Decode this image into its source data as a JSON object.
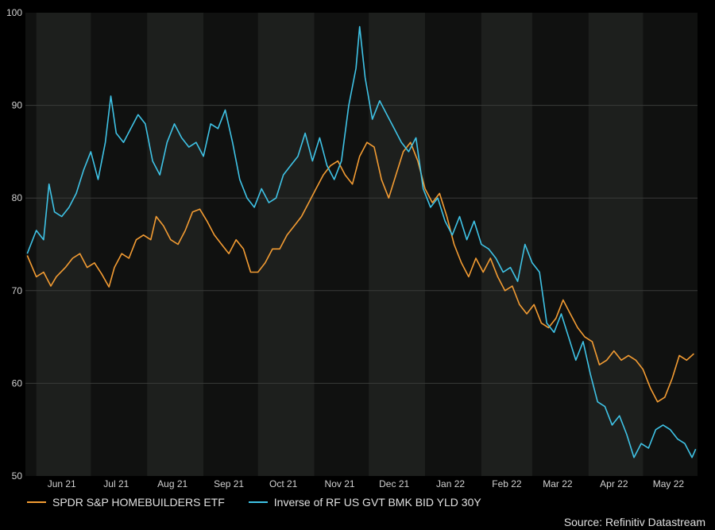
{
  "chart_data": {
    "type": "line",
    "title": "",
    "xlabel": "",
    "ylabel": "",
    "ylim": [
      50,
      100
    ],
    "yticks": [
      50,
      60,
      70,
      80,
      90,
      100
    ],
    "xlim": [
      "2021-05-26",
      "2022-05-31"
    ],
    "xtick_labels": [
      {
        "date": "2021-06-15",
        "label": "Jun 21"
      },
      {
        "date": "2021-07-15",
        "label": "Jul 21"
      },
      {
        "date": "2021-08-15",
        "label": "Aug 21"
      },
      {
        "date": "2021-09-15",
        "label": "Sep 21"
      },
      {
        "date": "2021-10-15",
        "label": "Oct 21"
      },
      {
        "date": "2021-11-15",
        "label": "Nov 21"
      },
      {
        "date": "2021-12-15",
        "label": "Dec 21"
      },
      {
        "date": "2022-01-15",
        "label": "Jan 22"
      },
      {
        "date": "2022-02-15",
        "label": "Feb 22"
      },
      {
        "date": "2022-03-15",
        "label": "Mar 22"
      },
      {
        "date": "2022-04-15",
        "label": "Apr 22"
      },
      {
        "date": "2022-05-15",
        "label": "May 22"
      }
    ],
    "month_bands": [
      "2021-06-01",
      "2021-07-01",
      "2021-08-01",
      "2021-09-01",
      "2021-10-01",
      "2021-11-01",
      "2021-12-01",
      "2022-01-01",
      "2022-02-01",
      "2022-03-01",
      "2022-04-01",
      "2022-05-01"
    ],
    "grid": "horizontal",
    "legend_position": "bottom-left",
    "series": [
      {
        "name": "SPDR S&P HOMEBUILDERS ETF",
        "color": "#f39c33",
        "points": [
          [
            "2021-05-27",
            73.8
          ],
          [
            "2021-06-01",
            71.5
          ],
          [
            "2021-06-05",
            72.0
          ],
          [
            "2021-06-09",
            70.5
          ],
          [
            "2021-06-12",
            71.5
          ],
          [
            "2021-06-17",
            72.5
          ],
          [
            "2021-06-21",
            73.5
          ],
          [
            "2021-06-25",
            74.0
          ],
          [
            "2021-06-29",
            72.5
          ],
          [
            "2021-07-03",
            73.0
          ],
          [
            "2021-07-07",
            71.8
          ],
          [
            "2021-07-11",
            70.4
          ],
          [
            "2021-07-14",
            72.5
          ],
          [
            "2021-07-18",
            74.0
          ],
          [
            "2021-07-22",
            73.5
          ],
          [
            "2021-07-26",
            75.5
          ],
          [
            "2021-07-30",
            76.0
          ],
          [
            "2021-08-03",
            75.5
          ],
          [
            "2021-08-06",
            78.0
          ],
          [
            "2021-08-10",
            77.0
          ],
          [
            "2021-08-14",
            75.5
          ],
          [
            "2021-08-18",
            75.0
          ],
          [
            "2021-08-22",
            76.5
          ],
          [
            "2021-08-26",
            78.5
          ],
          [
            "2021-08-30",
            78.8
          ],
          [
            "2021-09-03",
            77.5
          ],
          [
            "2021-09-07",
            76.0
          ],
          [
            "2021-09-11",
            75.0
          ],
          [
            "2021-09-15",
            74.0
          ],
          [
            "2021-09-19",
            75.5
          ],
          [
            "2021-09-23",
            74.5
          ],
          [
            "2021-09-27",
            72.0
          ],
          [
            "2021-10-01",
            72.0
          ],
          [
            "2021-10-05",
            73.0
          ],
          [
            "2021-10-09",
            74.5
          ],
          [
            "2021-10-13",
            74.5
          ],
          [
            "2021-10-17",
            76.0
          ],
          [
            "2021-10-21",
            77.0
          ],
          [
            "2021-10-25",
            78.0
          ],
          [
            "2021-10-29",
            79.5
          ],
          [
            "2021-11-02",
            81.0
          ],
          [
            "2021-11-06",
            82.5
          ],
          [
            "2021-11-10",
            83.5
          ],
          [
            "2021-11-14",
            84.0
          ],
          [
            "2021-11-18",
            82.5
          ],
          [
            "2021-11-22",
            81.5
          ],
          [
            "2021-11-26",
            84.5
          ],
          [
            "2021-11-30",
            86.0
          ],
          [
            "2021-12-04",
            85.5
          ],
          [
            "2021-12-08",
            82.0
          ],
          [
            "2021-12-12",
            80.0
          ],
          [
            "2021-12-16",
            82.5
          ],
          [
            "2021-12-20",
            85.0
          ],
          [
            "2021-12-24",
            86.0
          ],
          [
            "2021-12-28",
            84.0
          ],
          [
            "2022-01-01",
            81.0
          ],
          [
            "2022-01-05",
            79.5
          ],
          [
            "2022-01-09",
            80.5
          ],
          [
            "2022-01-13",
            78.0
          ],
          [
            "2022-01-17",
            75.0
          ],
          [
            "2022-01-21",
            73.0
          ],
          [
            "2022-01-25",
            71.5
          ],
          [
            "2022-01-29",
            73.5
          ],
          [
            "2022-02-02",
            72.0
          ],
          [
            "2022-02-06",
            73.5
          ],
          [
            "2022-02-10",
            71.5
          ],
          [
            "2022-02-14",
            70.0
          ],
          [
            "2022-02-18",
            70.5
          ],
          [
            "2022-02-22",
            68.5
          ],
          [
            "2022-02-26",
            67.5
          ],
          [
            "2022-03-02",
            68.5
          ],
          [
            "2022-03-06",
            66.5
          ],
          [
            "2022-03-10",
            66.0
          ],
          [
            "2022-03-14",
            67.0
          ],
          [
            "2022-03-18",
            69.0
          ],
          [
            "2022-03-22",
            67.5
          ],
          [
            "2022-03-26",
            66.0
          ],
          [
            "2022-03-30",
            65.0
          ],
          [
            "2022-04-03",
            64.5
          ],
          [
            "2022-04-07",
            62.0
          ],
          [
            "2022-04-11",
            62.5
          ],
          [
            "2022-04-15",
            63.5
          ],
          [
            "2022-04-19",
            62.5
          ],
          [
            "2022-04-23",
            63.0
          ],
          [
            "2022-04-27",
            62.5
          ],
          [
            "2022-05-01",
            61.5
          ],
          [
            "2022-05-05",
            59.5
          ],
          [
            "2022-05-09",
            58.0
          ],
          [
            "2022-05-13",
            58.5
          ],
          [
            "2022-05-17",
            60.5
          ],
          [
            "2022-05-21",
            63.0
          ],
          [
            "2022-05-25",
            62.5
          ],
          [
            "2022-05-29",
            63.2
          ]
        ]
      },
      {
        "name": "Inverse of RF US GVT BMK BID YLD 30Y",
        "color": "#3fc3e6",
        "points": [
          [
            "2021-05-27",
            74.0
          ],
          [
            "2021-06-01",
            76.5
          ],
          [
            "2021-06-05",
            75.5
          ],
          [
            "2021-06-08",
            81.5
          ],
          [
            "2021-06-11",
            78.5
          ],
          [
            "2021-06-15",
            78.0
          ],
          [
            "2021-06-19",
            79.0
          ],
          [
            "2021-06-23",
            80.5
          ],
          [
            "2021-06-27",
            83.0
          ],
          [
            "2021-07-01",
            85.0
          ],
          [
            "2021-07-05",
            82.0
          ],
          [
            "2021-07-09",
            86.0
          ],
          [
            "2021-07-12",
            91.0
          ],
          [
            "2021-07-15",
            87.0
          ],
          [
            "2021-07-19",
            86.0
          ],
          [
            "2021-07-23",
            87.5
          ],
          [
            "2021-07-27",
            89.0
          ],
          [
            "2021-07-31",
            88.0
          ],
          [
            "2021-08-04",
            84.0
          ],
          [
            "2021-08-08",
            82.5
          ],
          [
            "2021-08-12",
            86.0
          ],
          [
            "2021-08-16",
            88.0
          ],
          [
            "2021-08-20",
            86.5
          ],
          [
            "2021-08-24",
            85.5
          ],
          [
            "2021-08-28",
            86.0
          ],
          [
            "2021-09-01",
            84.5
          ],
          [
            "2021-09-05",
            88.0
          ],
          [
            "2021-09-09",
            87.5
          ],
          [
            "2021-09-13",
            89.5
          ],
          [
            "2021-09-17",
            86.0
          ],
          [
            "2021-09-21",
            82.0
          ],
          [
            "2021-09-25",
            80.0
          ],
          [
            "2021-09-29",
            79.0
          ],
          [
            "2021-10-03",
            81.0
          ],
          [
            "2021-10-07",
            79.5
          ],
          [
            "2021-10-11",
            80.0
          ],
          [
            "2021-10-15",
            82.5
          ],
          [
            "2021-10-19",
            83.5
          ],
          [
            "2021-10-23",
            84.5
          ],
          [
            "2021-10-27",
            87.0
          ],
          [
            "2021-10-31",
            84.0
          ],
          [
            "2021-11-04",
            86.5
          ],
          [
            "2021-11-08",
            83.5
          ],
          [
            "2021-11-12",
            82.0
          ],
          [
            "2021-11-16",
            84.0
          ],
          [
            "2021-11-20",
            90.0
          ],
          [
            "2021-11-24",
            94.0
          ],
          [
            "2021-11-26",
            98.5
          ],
          [
            "2021-11-29",
            93.0
          ],
          [
            "2021-12-03",
            88.5
          ],
          [
            "2021-12-07",
            90.5
          ],
          [
            "2021-12-11",
            89.0
          ],
          [
            "2021-12-15",
            87.5
          ],
          [
            "2021-12-19",
            86.0
          ],
          [
            "2021-12-23",
            85.0
          ],
          [
            "2021-12-27",
            86.5
          ],
          [
            "2021-12-31",
            81.0
          ],
          [
            "2022-01-04",
            79.0
          ],
          [
            "2022-01-08",
            80.0
          ],
          [
            "2022-01-12",
            77.5
          ],
          [
            "2022-01-16",
            76.0
          ],
          [
            "2022-01-20",
            78.0
          ],
          [
            "2022-01-24",
            75.5
          ],
          [
            "2022-01-28",
            77.5
          ],
          [
            "2022-02-01",
            75.0
          ],
          [
            "2022-02-05",
            74.5
          ],
          [
            "2022-02-09",
            73.5
          ],
          [
            "2022-02-13",
            72.0
          ],
          [
            "2022-02-17",
            72.5
          ],
          [
            "2022-02-21",
            71.0
          ],
          [
            "2022-02-25",
            75.0
          ],
          [
            "2022-03-01",
            73.0
          ],
          [
            "2022-03-05",
            72.0
          ],
          [
            "2022-03-09",
            66.5
          ],
          [
            "2022-03-13",
            65.5
          ],
          [
            "2022-03-17",
            67.5
          ],
          [
            "2022-03-21",
            65.0
          ],
          [
            "2022-03-25",
            62.5
          ],
          [
            "2022-03-29",
            64.5
          ],
          [
            "2022-04-02",
            61.0
          ],
          [
            "2022-04-06",
            58.0
          ],
          [
            "2022-04-10",
            57.5
          ],
          [
            "2022-04-14",
            55.5
          ],
          [
            "2022-04-18",
            56.5
          ],
          [
            "2022-04-22",
            54.5
          ],
          [
            "2022-04-26",
            52.0
          ],
          [
            "2022-04-30",
            53.5
          ],
          [
            "2022-05-04",
            53.0
          ],
          [
            "2022-05-08",
            55.0
          ],
          [
            "2022-05-12",
            55.5
          ],
          [
            "2022-05-16",
            55.0
          ],
          [
            "2022-05-20",
            54.0
          ],
          [
            "2022-05-24",
            53.5
          ],
          [
            "2022-05-28",
            52.0
          ],
          [
            "2022-05-30",
            52.9
          ]
        ]
      }
    ]
  },
  "source": "Source: Refinitiv Datastream"
}
